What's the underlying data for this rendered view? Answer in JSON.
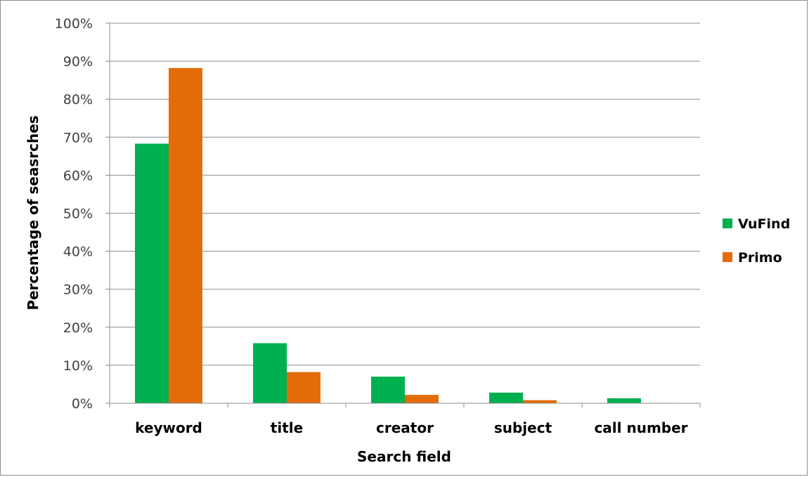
{
  "chart_data": {
    "type": "bar",
    "categories": [
      "keyword",
      "title",
      "creator",
      "subject",
      "call number"
    ],
    "series": [
      {
        "name": "VuFind",
        "color": "#00b050",
        "values": [
          68.3,
          15.8,
          7.0,
          2.8,
          1.3
        ]
      },
      {
        "name": "Primo",
        "color": "#e36c09",
        "values": [
          88.2,
          8.2,
          2.2,
          0.8,
          0.1
        ]
      }
    ],
    "xlabel": "Search field",
    "ylabel": "Percentage of seasrches",
    "ylim": [
      0,
      100
    ],
    "yticks": [
      "0%",
      "10%",
      "20%",
      "30%",
      "40%",
      "50%",
      "60%",
      "70%",
      "80%",
      "90%",
      "100%"
    ],
    "grid": true,
    "legend_position": "right"
  }
}
